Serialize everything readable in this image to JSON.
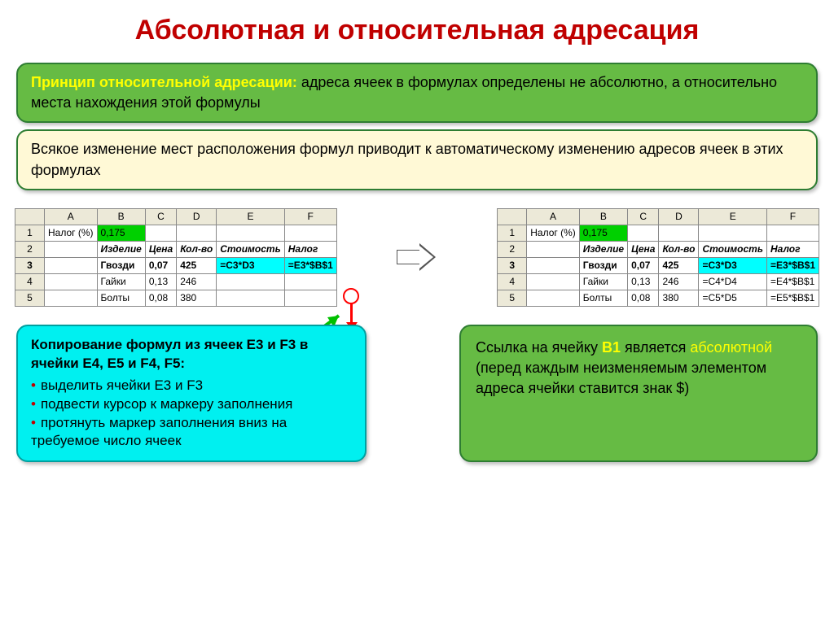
{
  "title": "Абсолютная и относительная адресация",
  "box1": {
    "lead": "Принцип относительной адресации:",
    "text": " адреса ячеек в формулах определены не абсолютно, а относительно места нахождения этой формулы"
  },
  "box2": "Всякое изменение мест расположения формул приводит к автоматическому изменению адресов ячеек в этих формулах",
  "table1": {
    "cols": [
      "",
      "A",
      "B",
      "C",
      "D",
      "E",
      "F"
    ],
    "rows": [
      {
        "n": "1",
        "cells": [
          "Налог (%)",
          "0,175",
          "",
          "",
          "",
          ""
        ],
        "styles": [
          "",
          "greenfill",
          "",
          "",
          "",
          ""
        ]
      },
      {
        "n": "2",
        "cells": [
          "",
          "Изделие",
          "Цена",
          "Кол-во",
          "Стоимость",
          "Налог"
        ],
        "styles": [
          "",
          "italic-hdr",
          "italic-hdr",
          "italic-hdr",
          "italic-hdr",
          "italic-hdr"
        ]
      },
      {
        "n": "3",
        "cells": [
          "",
          "Гвозди",
          "0,07",
          "425",
          "=C3*D3",
          "=E3*$B$1"
        ],
        "styles": [
          "",
          "",
          "",
          "",
          "cyanfill",
          "cyanfill"
        ],
        "bold": true
      },
      {
        "n": "4",
        "cells": [
          "",
          "Гайки",
          "0,13",
          "246",
          "",
          ""
        ]
      },
      {
        "n": "5",
        "cells": [
          "",
          "Болты",
          "0,08",
          "380",
          "",
          ""
        ]
      }
    ]
  },
  "table2": {
    "cols": [
      "",
      "A",
      "B",
      "C",
      "D",
      "E",
      "F"
    ],
    "rows": [
      {
        "n": "1",
        "cells": [
          "Налог (%)",
          "0,175",
          "",
          "",
          "",
          ""
        ],
        "styles": [
          "",
          "greenfill",
          "",
          "",
          "",
          ""
        ]
      },
      {
        "n": "2",
        "cells": [
          "",
          "Изделие",
          "Цена",
          "Кол-во",
          "Стоимость",
          "Налог"
        ],
        "styles": [
          "",
          "italic-hdr",
          "italic-hdr",
          "italic-hdr",
          "italic-hdr",
          "italic-hdr"
        ]
      },
      {
        "n": "3",
        "cells": [
          "",
          "Гвозди",
          "0,07",
          "425",
          "=C3*D3",
          "=E3*$B$1"
        ],
        "styles": [
          "",
          "",
          "",
          "",
          "cyanfill",
          "cyanfill"
        ],
        "bold": true
      },
      {
        "n": "4",
        "cells": [
          "",
          "Гайки",
          "0,13",
          "246",
          "=C4*D4",
          "=E4*$B$1"
        ]
      },
      {
        "n": "5",
        "cells": [
          "",
          "Болты",
          "0,08",
          "380",
          "=C5*D5",
          "=E5*$B$1"
        ]
      }
    ]
  },
  "cyan": {
    "lead": "Копирование формул из ячеек E3 и F3 в ячейки E4, E5 и F4, F5:",
    "items": [
      "выделить ячейки E3 и F3",
      "подвести курсор к маркеру заполнения",
      "протянуть маркер заполнения вниз на требуемое число ячеек"
    ]
  },
  "green": {
    "p1a": "Ссылка на ячейку ",
    "b1": "B1",
    "p1b": " является ",
    "abs": "абсолютной",
    "p2": " (перед каждым неизменяемым элементом адреса ячейки ставится знак $)"
  },
  "colors": {
    "title": "#c00000",
    "greenbox_bg": "#66bb44",
    "greenbox_border": "#2e7d32",
    "creambox_bg": "#fff9d6",
    "cyan_bg": "#00f0f0",
    "highlight_green": "#00d000",
    "highlight_cyan": "#00ffff",
    "yellow_text": "#ffff00",
    "red": "#ff0000"
  }
}
